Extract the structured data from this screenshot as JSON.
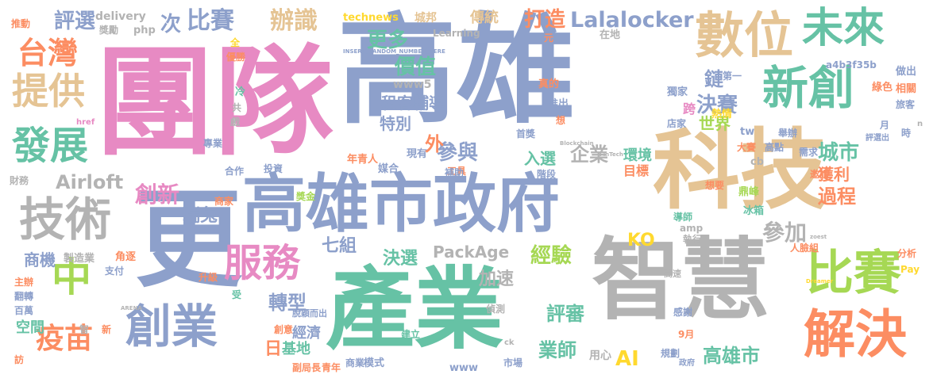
{
  "palette": {
    "pink": "#e78ac3",
    "blue": "#8da0cb",
    "green": "#66c2a5",
    "orange": "#fc8d62",
    "lime": "#a6d854",
    "yellow": "#ffd92f",
    "tan": "#e5c494",
    "gray": "#b3b3b3"
  },
  "words": [
    {
      "text": "團隊",
      "color": "pink",
      "vertical": false
    },
    {
      "text": "高雄",
      "color": "blue",
      "vertical": false
    },
    {
      "text": "科技",
      "color": "tan",
      "vertical": false
    },
    {
      "text": "智慧",
      "color": "gray",
      "vertical": false
    },
    {
      "text": "產業",
      "color": "green",
      "vertical": false
    },
    {
      "text": "更",
      "color": "blue",
      "vertical": false
    },
    {
      "text": "高雄市政府",
      "color": "blue",
      "vertical": false
    },
    {
      "text": "數位",
      "color": "tan",
      "vertical": false
    },
    {
      "text": "未來",
      "color": "green",
      "vertical": false
    },
    {
      "text": "新創",
      "color": "green",
      "vertical": false
    },
    {
      "text": "比賽",
      "color": "lime",
      "vertical": false
    },
    {
      "text": "解決",
      "color": "orange",
      "vertical": false
    },
    {
      "text": "創業",
      "color": "blue",
      "vertical": false
    },
    {
      "text": "技術",
      "color": "gray",
      "vertical": false
    },
    {
      "text": "台灣",
      "color": "orange",
      "vertical": false
    },
    {
      "text": "提供",
      "color": "tan",
      "vertical": false
    },
    {
      "text": "發展",
      "color": "green",
      "vertical": false
    },
    {
      "text": "服務",
      "color": "pink",
      "vertical": false
    },
    {
      "text": "中",
      "color": "lime",
      "vertical": false
    },
    {
      "text": "疫苗",
      "color": "orange",
      "vertical": false
    },
    {
      "text": "次",
      "color": "blue",
      "vertical": false
    },
    {
      "text": "比賽",
      "color": "blue",
      "vertical": false
    },
    {
      "text": "辦識",
      "color": "tan",
      "vertical": false
    },
    {
      "text": "打造",
      "color": "orange",
      "vertical": false
    },
    {
      "text": "Lalalocker",
      "color": "blue",
      "vertical": false
    },
    {
      "text": "評選",
      "color": "blue",
      "vertical": false
    },
    {
      "text": "更多",
      "color": "green",
      "vertical": false
    },
    {
      "text": "價值",
      "color": "green",
      "vertical": false
    },
    {
      "text": "決賽",
      "color": "blue",
      "vertical": false
    },
    {
      "text": "城市",
      "color": "green",
      "vertical": false
    },
    {
      "text": "過程",
      "color": "orange",
      "vertical": false
    },
    {
      "text": "參加",
      "color": "gray",
      "vertical": false
    },
    {
      "text": "創新",
      "color": "pink",
      "vertical": false
    },
    {
      "text": "Airloft",
      "color": "gray",
      "vertical": false
    },
    {
      "text": "參與",
      "color": "blue",
      "vertical": false
    },
    {
      "text": "企業",
      "color": "gray",
      "vertical": false
    },
    {
      "text": "轉型",
      "color": "blue",
      "vertical": false
    },
    {
      "text": "經驗",
      "color": "lime",
      "vertical": false
    },
    {
      "text": "評審",
      "color": "green",
      "vertical": false
    },
    {
      "text": "業師",
      "color": "green",
      "vertical": false
    },
    {
      "text": "高雄市",
      "color": "green",
      "vertical": false
    },
    {
      "text": "AI",
      "color": "yellow",
      "vertical": false
    },
    {
      "text": "KO",
      "color": "yellow",
      "vertical": false
    },
    {
      "text": "PackAge",
      "color": "gray",
      "vertical": false
    },
    {
      "text": "決選",
      "color": "green",
      "vertical": false
    },
    {
      "text": "七組",
      "color": "blue",
      "vertical": false
    },
    {
      "text": "加速",
      "color": "gray",
      "vertical": false
    },
    {
      "text": "瑞兔",
      "color": "blue",
      "vertical": false
    },
    {
      "text": "鏈",
      "color": "blue",
      "vertical": false
    },
    {
      "text": "世界",
      "color": "lime",
      "vertical": false
    },
    {
      "text": "特別",
      "color": "blue",
      "vertical": false
    },
    {
      "text": "租客",
      "color": "blue",
      "vertical": false
    },
    {
      "text": "輔導",
      "color": "blue",
      "vertical": false
    },
    {
      "text": "外",
      "color": "orange",
      "vertical": false
    },
    {
      "text": "入選",
      "color": "green",
      "vertical": false
    },
    {
      "text": "商機",
      "color": "blue",
      "vertical": false
    },
    {
      "text": "日",
      "color": "orange",
      "vertical": false
    },
    {
      "text": "基地",
      "color": "green",
      "vertical": false
    },
    {
      "text": "經濟",
      "color": "blue",
      "vertical": false
    },
    {
      "text": "空間",
      "color": "green",
      "vertical": false
    },
    {
      "text": "獲利",
      "color": "orange",
      "vertical": false
    },
    {
      "text": "環境",
      "color": "green",
      "vertical": false
    },
    {
      "text": "目標",
      "color": "orange",
      "vertical": false
    },
    {
      "text": "傳統",
      "color": "tan",
      "vertical": false
    },
    {
      "text": "城邦",
      "color": "tan",
      "vertical": false
    },
    {
      "text": "technews",
      "color": "yellow",
      "vertical": false
    },
    {
      "text": "delivery",
      "color": "gray",
      "vertical": false
    },
    {
      "text": "Learning",
      "color": "gray",
      "vertical": false
    },
    {
      "text": "www5",
      "color": "gray",
      "vertical": false
    },
    {
      "text": "php",
      "color": "gray",
      "vertical": false
    },
    {
      "text": "推動",
      "color": "orange",
      "vertical": false
    },
    {
      "text": "獎勵",
      "color": "gray",
      "vertical": false
    },
    {
      "text": "全",
      "color": "yellow",
      "vertical": false
    },
    {
      "text": "優勝",
      "color": "orange",
      "vertical": false
    },
    {
      "text": "冷",
      "color": "green",
      "vertical": false
    },
    {
      "text": "共",
      "color": "gray",
      "vertical": false
    },
    {
      "text": "戲",
      "color": "gray",
      "vertical": false
    },
    {
      "text": "專業",
      "color": "blue",
      "vertical": false
    },
    {
      "text": "合作",
      "color": "blue",
      "vertical": false
    },
    {
      "text": "投資",
      "color": "blue",
      "vertical": false
    },
    {
      "text": "年青人",
      "color": "orange",
      "vertical": false
    },
    {
      "text": "媒合",
      "color": "blue",
      "vertical": false
    },
    {
      "text": "現有",
      "color": "blue",
      "vertical": false
    },
    {
      "text": "工具",
      "color": "orange",
      "vertical": false
    },
    {
      "text": "階段",
      "color": "blue",
      "vertical": false
    },
    {
      "text": "首獎",
      "color": "blue",
      "vertical": false
    },
    {
      "text": "真的",
      "color": "orange",
      "vertical": false
    },
    {
      "text": "推出",
      "color": "blue",
      "vertical": false
    },
    {
      "text": "想",
      "color": "orange",
      "vertical": false
    },
    {
      "text": "元",
      "color": "orange",
      "vertical": false
    },
    {
      "text": "在地",
      "color": "gray",
      "vertical": false
    },
    {
      "text": "獨家",
      "color": "blue",
      "vertical": false
    },
    {
      "text": "熱情",
      "color": "yellow",
      "vertical": false
    },
    {
      "text": "跨",
      "color": "pink",
      "vertical": false
    },
    {
      "text": "第一",
      "color": "blue",
      "vertical": false
    },
    {
      "text": "a4b3f35b",
      "color": "blue",
      "vertical": false
    },
    {
      "text": "綠色",
      "color": "orange",
      "vertical": false
    },
    {
      "text": "做出",
      "color": "blue",
      "vertical": false
    },
    {
      "text": "相關",
      "color": "orange",
      "vertical": false
    },
    {
      "text": "旅客",
      "color": "blue",
      "vertical": false
    },
    {
      "text": "時",
      "color": "blue",
      "vertical": false
    },
    {
      "text": "月",
      "color": "blue",
      "vertical": false
    },
    {
      "text": "店家",
      "color": "blue",
      "vertical": false
    },
    {
      "text": "tw",
      "color": "blue",
      "vertical": false
    },
    {
      "text": "舉辦",
      "color": "blue",
      "vertical": false
    },
    {
      "text": "大賽",
      "color": "orange",
      "vertical": false
    },
    {
      "text": "高點",
      "color": "blue",
      "vertical": false
    },
    {
      "text": "需求",
      "color": "blue",
      "vertical": false
    },
    {
      "text": "cb",
      "color": "gray",
      "vertical": false
    },
    {
      "text": "邀請",
      "color": "orange",
      "vertical": false
    },
    {
      "text": "鼎峰",
      "color": "lime",
      "vertical": false
    },
    {
      "text": "冰箱",
      "color": "green",
      "vertical": false
    },
    {
      "text": "想要",
      "color": "orange",
      "vertical": false
    },
    {
      "text": "導師",
      "color": "green",
      "vertical": false
    },
    {
      "text": "amp",
      "color": "gray",
      "vertical": false
    },
    {
      "text": "執行",
      "color": "gray",
      "vertical": false
    },
    {
      "text": "人臉組",
      "color": "orange",
      "vertical": false
    },
    {
      "text": "分析",
      "color": "orange",
      "vertical": false
    },
    {
      "text": "Pay",
      "color": "yellow",
      "vertical": false
    },
    {
      "text": "高速",
      "color": "gray",
      "vertical": false
    },
    {
      "text": "感謝",
      "color": "blue",
      "vertical": false
    },
    {
      "text": "9月",
      "color": "orange",
      "vertical": false
    },
    {
      "text": "規劃",
      "color": "blue",
      "vertical": false
    },
    {
      "text": "用心",
      "color": "gray",
      "vertical": false
    },
    {
      "text": "市場",
      "color": "blue",
      "vertical": false
    },
    {
      "text": "偵測",
      "color": "gray",
      "vertical": false
    },
    {
      "text": "建立",
      "color": "green",
      "vertical": false
    },
    {
      "text": "模式",
      "color": "blue",
      "vertical": false
    },
    {
      "text": "商業",
      "color": "blue",
      "vertical": false
    },
    {
      "text": "青年",
      "color": "orange",
      "vertical": false
    },
    {
      "text": "副局長",
      "color": "orange",
      "vertical": false
    },
    {
      "text": "www",
      "color": "blue",
      "vertical": false
    },
    {
      "text": "創意",
      "color": "orange",
      "vertical": false
    },
    {
      "text": "脫穎而出",
      "color": "blue",
      "vertical": false
    },
    {
      "text": "升級",
      "color": "orange",
      "vertical": false
    },
    {
      "text": "受",
      "color": "green",
      "vertical": false
    },
    {
      "text": "角逐",
      "color": "orange",
      "vertical": false
    },
    {
      "text": "支付",
      "color": "blue",
      "vertical": false
    },
    {
      "text": "製造業",
      "color": "gray",
      "vertical": false
    },
    {
      "text": "主辦",
      "color": "orange",
      "vertical": false
    },
    {
      "text": "翻轉",
      "color": "blue",
      "vertical": false
    },
    {
      "text": "百萬",
      "color": "blue",
      "vertical": false
    },
    {
      "text": "訪",
      "color": "orange",
      "vertical": false
    },
    {
      "text": "智",
      "color": "gray",
      "vertical": false
    },
    {
      "text": "新",
      "color": "orange",
      "vertical": false
    },
    {
      "text": "財務",
      "color": "gray",
      "vertical": false
    },
    {
      "text": "獎金",
      "color": "lime",
      "vertical": false
    },
    {
      "text": "商家",
      "color": "orange",
      "vertical": false
    },
    {
      "text": "補助",
      "color": "blue",
      "vertical": false
    },
    {
      "text": "href",
      "color": "pink",
      "vertical": false
    },
    {
      "text": "n",
      "color": "gray",
      "vertical": false
    },
    {
      "text": "評選出",
      "color": "blue",
      "vertical": false
    },
    {
      "text": "ck",
      "color": "gray",
      "vertical": false
    },
    {
      "text": "政府",
      "color": "blue",
      "vertical": false
    },
    {
      "text": "INSERT_RANDOM_NUMBER_HERE",
      "color": "blue",
      "vertical": false
    },
    {
      "text": "FinTech",
      "color": "gray",
      "vertical": false
    },
    {
      "text": "Blockchain",
      "color": "gray",
      "vertical": false
    },
    {
      "text": "Dreamer",
      "color": "yellow",
      "vertical": false
    },
    {
      "text": "ARENA",
      "color": "gray",
      "vertical": false
    },
    {
      "text": "zoest",
      "color": "gray",
      "vertical": false
    }
  ]
}
